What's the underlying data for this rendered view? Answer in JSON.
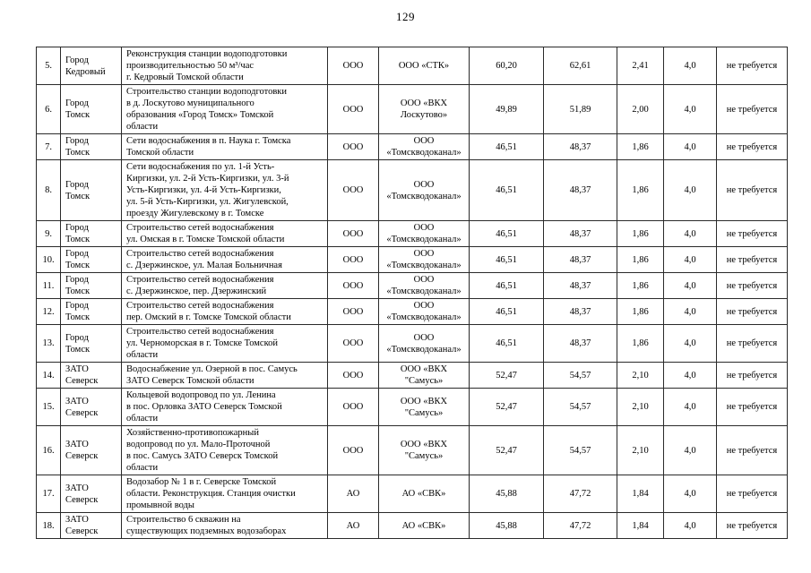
{
  "page": {
    "number": "129"
  },
  "table": {
    "rows": [
      {
        "num": "5.",
        "city": "Город\nКедровый",
        "desc": "Реконструкция станции водоподготовки\nпроизводительностью 50 м³/час\nг. Кедровый Томской области",
        "form": "ООО",
        "org": "ООО «СТК»",
        "v1": "60,20",
        "v2": "62,61",
        "v3": "2,41",
        "pct": "4,0",
        "note": "не требуется"
      },
      {
        "num": "6.",
        "city": "Город\nТомск",
        "desc": "Строительство станции водоподготовки\nв д. Лоскутово муниципального\nобразования «Город Томск» Томской\nобласти",
        "form": "ООО",
        "org": "ООО «ВКХ\nЛоскутово»",
        "v1": "49,89",
        "v2": "51,89",
        "v3": "2,00",
        "pct": "4,0",
        "note": "не требуется"
      },
      {
        "num": "7.",
        "city": "Город\nТомск",
        "desc": "Сети водоснабжения в п. Наука г. Томска\nТомской области",
        "form": "ООО",
        "org": "ООО\n«Томскводоканал»",
        "v1": "46,51",
        "v2": "48,37",
        "v3": "1,86",
        "pct": "4,0",
        "note": "не требуется"
      },
      {
        "num": "8.",
        "city": "Город\nТомск",
        "desc": "Сети водоснабжения по ул. 1-й Усть-\nКиргизки, ул. 2-й Усть-Киргизки, ул. 3-й\nУсть-Киргизки, ул. 4-й Усть-Киргизки,\nул. 5-й Усть-Киргизки, ул. Жигулевской,\nпроезду Жигулевскому в г. Томске",
        "form": "ООО",
        "org": "ООО\n«Томскводоканал»",
        "v1": "46,51",
        "v2": "48,37",
        "v3": "1,86",
        "pct": "4,0",
        "note": "не требуется"
      },
      {
        "num": "9.",
        "city": "Город\nТомск",
        "desc": "Строительство сетей водоснабжения\nул. Омская в г. Томске Томской области",
        "form": "ООО",
        "org": "ООО\n«Томскводоканал»",
        "v1": "46,51",
        "v2": "48,37",
        "v3": "1,86",
        "pct": "4,0",
        "note": "не требуется"
      },
      {
        "num": "10.",
        "city": "Город\nТомск",
        "desc": "Строительство сетей водоснабжения\nс. Дзержинское, ул. Малая Больничная",
        "form": "ООО",
        "org": "ООО\n«Томскводоканал»",
        "v1": "46,51",
        "v2": "48,37",
        "v3": "1,86",
        "pct": "4,0",
        "note": "не требуется"
      },
      {
        "num": "11.",
        "city": "Город\nТомск",
        "desc": "Строительство сетей водоснабжения\nс. Дзержинское, пер. Дзержинский",
        "form": "ООО",
        "org": "ООО\n«Томскводоканал»",
        "v1": "46,51",
        "v2": "48,37",
        "v3": "1,86",
        "pct": "4,0",
        "note": "не требуется"
      },
      {
        "num": "12.",
        "city": "Город\nТомск",
        "desc": "Строительство сетей водоснабжения\nпер. Омский в г. Томске Томской области",
        "form": "ООО",
        "org": "ООО\n«Томскводоканал»",
        "v1": "46,51",
        "v2": "48,37",
        "v3": "1,86",
        "pct": "4,0",
        "note": "не требуется"
      },
      {
        "num": "13.",
        "city": "Город\nТомск",
        "desc": "Строительство сетей водоснабжения\nул. Черноморская в г. Томске Томской\nобласти",
        "form": "ООО",
        "org": "ООО\n«Томскводоканал»",
        "v1": "46,51",
        "v2": "48,37",
        "v3": "1,86",
        "pct": "4,0",
        "note": "не требуется"
      },
      {
        "num": "14.",
        "city": "ЗАТО\nСеверск",
        "desc": "Водоснабжение ул. Озерной в пос. Самусь\nЗАТО Северск Томской области",
        "form": "ООО",
        "org": "ООО «ВКХ\n\"Самусь»",
        "v1": "52,47",
        "v2": "54,57",
        "v3": "2,10",
        "pct": "4,0",
        "note": "не требуется"
      },
      {
        "num": "15.",
        "city": "ЗАТО\nСеверск",
        "desc": "Кольцевой водопровод по ул. Ленина\nв пос. Орловка ЗАТО Северск Томской\nобласти",
        "form": "ООО",
        "org": "ООО «ВКХ\n\"Самусь»",
        "v1": "52,47",
        "v2": "54,57",
        "v3": "2,10",
        "pct": "4,0",
        "note": "не требуется"
      },
      {
        "num": "16.",
        "city": "ЗАТО\nСеверск",
        "desc": "Хозяйственно-противопожарный\nводопровод по ул. Мало-Проточной\nв пос. Самусь ЗАТО Северск Томской\nобласти",
        "form": "ООО",
        "org": "ООО «ВКХ\n\"Самусь»",
        "v1": "52,47",
        "v2": "54,57",
        "v3": "2,10",
        "pct": "4,0",
        "note": "не требуется"
      },
      {
        "num": "17.",
        "city": "ЗАТО\nСеверск",
        "desc": "Водозабор № 1 в г. Северске Томской\nобласти. Реконструкция. Станция очистки\nпромывной воды",
        "form": "АО",
        "org": "АО «СВК»",
        "v1": "45,88",
        "v2": "47,72",
        "v3": "1,84",
        "pct": "4,0",
        "note": "не требуется"
      },
      {
        "num": "18.",
        "city": "ЗАТО\nСеверск",
        "desc": "Строительство 6 скважин на\nсуществующих подземных водозаборах",
        "form": "АО",
        "org": "АО «СВК»",
        "v1": "45,88",
        "v2": "47,72",
        "v3": "1,84",
        "pct": "4,0",
        "note": "не требуется"
      }
    ]
  }
}
